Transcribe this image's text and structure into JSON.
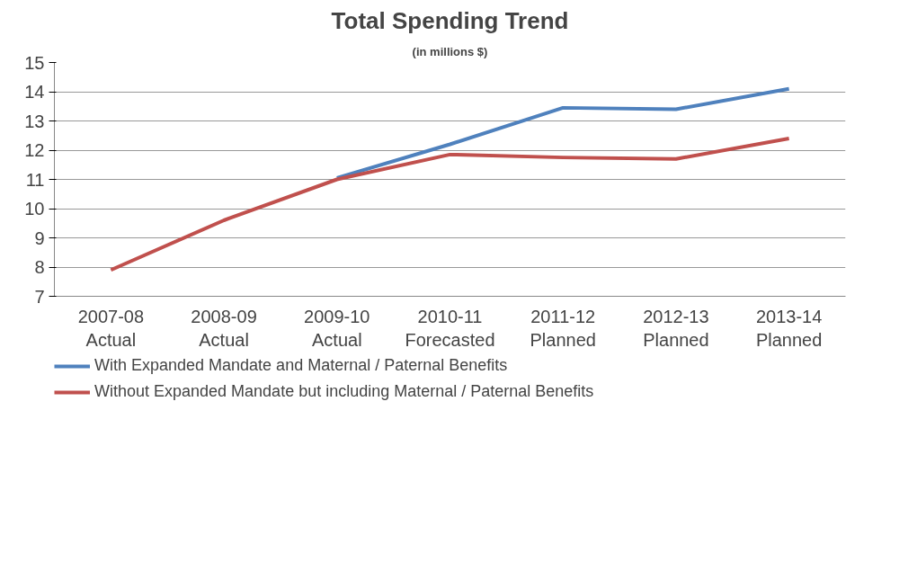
{
  "chart_data": {
    "type": "line",
    "title": "Total Spending Trend",
    "subtitle": "(in millions $)",
    "categories": [
      "2007-08\nActual",
      "2008-09\nActual",
      "2009-10\nActual",
      "2010-11\nForecasted",
      "2011-12\nPlanned",
      "2012-13\nPlanned",
      "2013-14\nPlanned"
    ],
    "series": [
      {
        "name": "With Expanded Mandate and Maternal / Paternal Benefits",
        "color": "#4f81bd",
        "values": [
          null,
          null,
          11.05,
          12.2,
          13.45,
          13.4,
          14.1
        ]
      },
      {
        "name": "Without Expanded Mandate but including Maternal / Paternal Benefits",
        "color": "#c0504d",
        "values": [
          7.9,
          9.6,
          11.0,
          11.85,
          11.75,
          11.7,
          12.4
        ]
      }
    ],
    "ylim": [
      7,
      15
    ],
    "yticks": [
      7,
      8,
      9,
      10,
      11,
      12,
      13,
      14,
      15
    ],
    "grid": "y",
    "legend": "bottom",
    "marker": "none",
    "line_style": "solid"
  }
}
